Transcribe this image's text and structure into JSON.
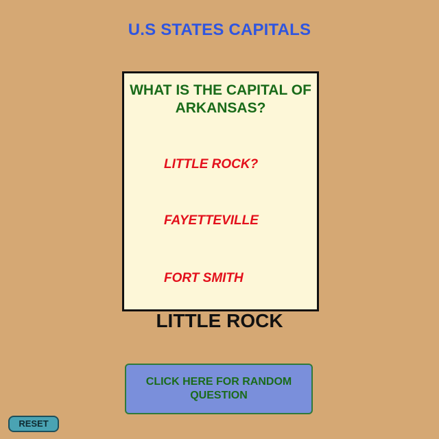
{
  "header": {
    "title": "U.S STATES CAPITALS"
  },
  "quiz": {
    "question": "WHAT IS THE CAPITAL OF ARKANSAS?",
    "options": [
      "LITTLE ROCK?",
      "FAYETTEVILLE",
      "FORT SMITH"
    ],
    "answer": "LITTLE ROCK"
  },
  "controls": {
    "random_label": "CLICK HERE FOR RANDOM QUESTION",
    "reset_label": "RESET"
  },
  "colors": {
    "background": "#d5a874",
    "title": "#2f55e0",
    "question": "#1a6b1a",
    "option": "#e3101c",
    "card": "#fdf7d8",
    "random_button": "#7a8fdb",
    "reset_button": "#4aa3b3"
  }
}
